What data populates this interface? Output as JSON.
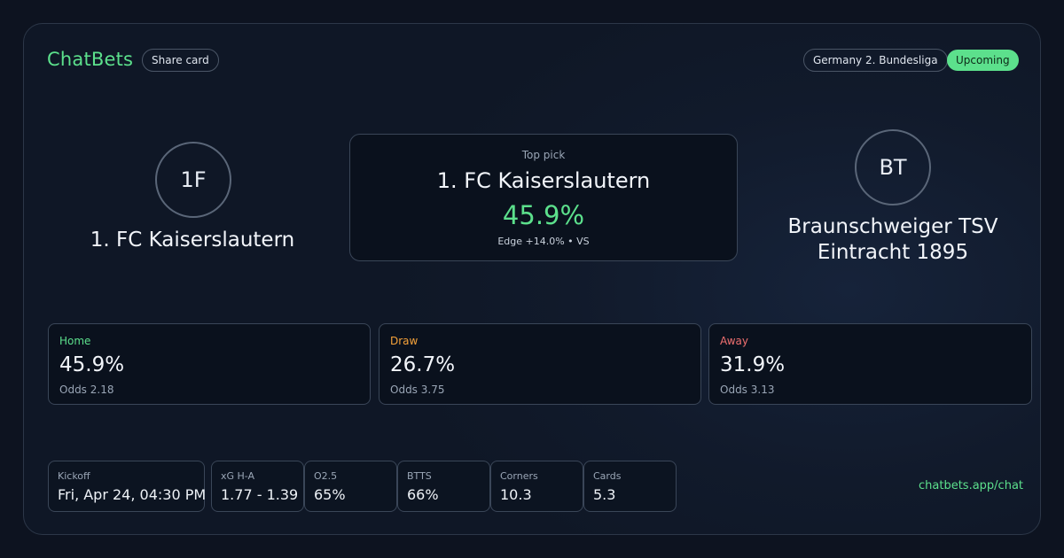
{
  "header": {
    "brand": "ChatBets",
    "share_label": "Share card",
    "league": "Germany 2. Bundesliga",
    "status": "Upcoming"
  },
  "match": {
    "home": {
      "initials": "1F",
      "name": "1. FC Kaiserslautern"
    },
    "away": {
      "initials": "BT",
      "name_line1": "Braunschweiger TSV",
      "name_line2": "Eintracht 1895"
    }
  },
  "top_pick": {
    "label": "Top pick",
    "team": "1. FC Kaiserslautern",
    "probability": "45.9%",
    "edge": "Edge +14.0% • VS"
  },
  "outcomes": {
    "home": {
      "label": "Home",
      "probability": "45.9%",
      "odds": "Odds 2.18"
    },
    "draw": {
      "label": "Draw",
      "probability": "26.7%",
      "odds": "Odds 3.75"
    },
    "away": {
      "label": "Away",
      "probability": "31.9%",
      "odds": "Odds 3.13"
    }
  },
  "stats": {
    "kickoff": {
      "label": "Kickoff",
      "value": "Fri, Apr 24, 04:30 PM"
    },
    "xg": {
      "label": "xG H-A",
      "value": "1.77 - 1.39"
    },
    "o25": {
      "label": "O2.5",
      "value": "65%"
    },
    "btts": {
      "label": "BTTS",
      "value": "66%"
    },
    "corners": {
      "label": "Corners",
      "value": "10.3"
    },
    "cards": {
      "label": "Cards",
      "value": "5.3"
    }
  },
  "footer": {
    "link": "chatbets.app/chat"
  },
  "colors": {
    "accent": "#5ce08c",
    "draw": "#f5a23a",
    "away": "#f07070",
    "background": "#0d1320"
  }
}
